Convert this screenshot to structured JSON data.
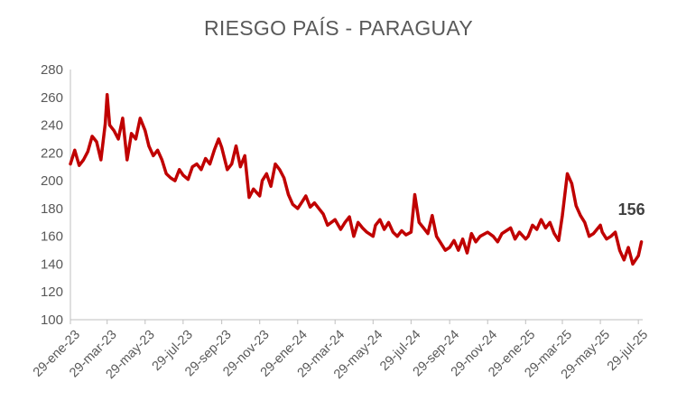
{
  "chart_data": {
    "type": "line",
    "title": "RIESGO PAÍS - PARAGUAY",
    "xlabel": "",
    "ylabel": "",
    "ylim": [
      100,
      280
    ],
    "yticks": [
      100,
      120,
      140,
      160,
      180,
      200,
      220,
      240,
      260,
      280
    ],
    "x_tick_labels": [
      "29-ene-23",
      "29-mar-23",
      "29-may-23",
      "29-jul-23",
      "29-sep-23",
      "29-nov-23",
      "29-ene-24",
      "29-mar-24",
      "29-may-24",
      "29-jul-24",
      "29-sep-24",
      "29-nov-24",
      "29-ene-25",
      "29-mar-25",
      "29-may-25",
      "29-jul-25"
    ],
    "grid": false,
    "legend": "none",
    "line_color": "#C00000",
    "last_value_label": "156",
    "series": [
      {
        "x": [
          "2023-01-29",
          "2023-02-05",
          "2023-02-12",
          "2023-02-19",
          "2023-02-26",
          "2023-03-05",
          "2023-03-12",
          "2023-03-19",
          "2023-03-26",
          "2023-03-29",
          "2023-04-02",
          "2023-04-09",
          "2023-04-16",
          "2023-04-23",
          "2023-04-30",
          "2023-05-07",
          "2023-05-14",
          "2023-05-21",
          "2023-05-29",
          "2023-06-04",
          "2023-06-11",
          "2023-06-18",
          "2023-06-25",
          "2023-07-02",
          "2023-07-09",
          "2023-07-16",
          "2023-07-23",
          "2023-07-29",
          "2023-08-06",
          "2023-08-13",
          "2023-08-20",
          "2023-08-27",
          "2023-09-03",
          "2023-09-10",
          "2023-09-17",
          "2023-09-24",
          "2023-09-29",
          "2023-10-08",
          "2023-10-15",
          "2023-10-22",
          "2023-10-29",
          "2023-11-05",
          "2023-11-12",
          "2023-11-19",
          "2023-11-29",
          "2023-12-03",
          "2023-12-10",
          "2023-12-17",
          "2023-12-24",
          "2023-12-31",
          "2024-01-07",
          "2024-01-14",
          "2024-01-21",
          "2024-01-29",
          "2024-02-04",
          "2024-02-11",
          "2024-02-18",
          "2024-02-25",
          "2024-03-03",
          "2024-03-10",
          "2024-03-17",
          "2024-03-29",
          "2024-04-07",
          "2024-04-14",
          "2024-04-21",
          "2024-04-28",
          "2024-05-05",
          "2024-05-12",
          "2024-05-19",
          "2024-05-29",
          "2024-06-02",
          "2024-06-09",
          "2024-06-16",
          "2024-06-23",
          "2024-06-30",
          "2024-07-07",
          "2024-07-14",
          "2024-07-21",
          "2024-07-29",
          "2024-08-04",
          "2024-08-11",
          "2024-08-18",
          "2024-08-25",
          "2024-09-01",
          "2024-09-08",
          "2024-09-15",
          "2024-09-22",
          "2024-09-29",
          "2024-10-06",
          "2024-10-13",
          "2024-10-20",
          "2024-10-27",
          "2024-11-03",
          "2024-11-10",
          "2024-11-17",
          "2024-11-29",
          "2024-12-08",
          "2024-12-15",
          "2024-12-22",
          "2024-12-29",
          "2025-01-05",
          "2025-01-12",
          "2025-01-19",
          "2025-01-29",
          "2025-02-02",
          "2025-02-09",
          "2025-02-16",
          "2025-02-23",
          "2025-03-02",
          "2025-03-09",
          "2025-03-16",
          "2025-03-23",
          "2025-03-29",
          "2025-04-06",
          "2025-04-13",
          "2025-04-20",
          "2025-04-27",
          "2025-05-04",
          "2025-05-11",
          "2025-05-18",
          "2025-05-29",
          "2025-06-01",
          "2025-06-08",
          "2025-06-15",
          "2025-06-22",
          "2025-06-29",
          "2025-07-06",
          "2025-07-13",
          "2025-07-20",
          "2025-07-29",
          "2025-08-03"
        ],
        "values": [
          212,
          222,
          211,
          215,
          221,
          232,
          228,
          215,
          241,
          262,
          240,
          236,
          230,
          245,
          215,
          234,
          230,
          245,
          236,
          225,
          218,
          222,
          215,
          205,
          202,
          200,
          208,
          204,
          201,
          210,
          212,
          208,
          216,
          212,
          222,
          230,
          224,
          208,
          212,
          225,
          210,
          218,
          188,
          194,
          189,
          200,
          205,
          196,
          212,
          208,
          202,
          190,
          183,
          180,
          184,
          189,
          181,
          184,
          180,
          176,
          168,
          172,
          165,
          170,
          174,
          160,
          170,
          166,
          163,
          160,
          168,
          172,
          165,
          170,
          163,
          160,
          164,
          161,
          163,
          190,
          170,
          166,
          162,
          175,
          160,
          155,
          150,
          152,
          157,
          150,
          158,
          148,
          162,
          156,
          160,
          163,
          160,
          156,
          162,
          164,
          166,
          158,
          163,
          158,
          160,
          168,
          165,
          172,
          166,
          170,
          162,
          157,
          175,
          205,
          198,
          182,
          175,
          170,
          160,
          162,
          168,
          163,
          158,
          160,
          163,
          150,
          143,
          152,
          140,
          146,
          156
        ]
      }
    ]
  }
}
